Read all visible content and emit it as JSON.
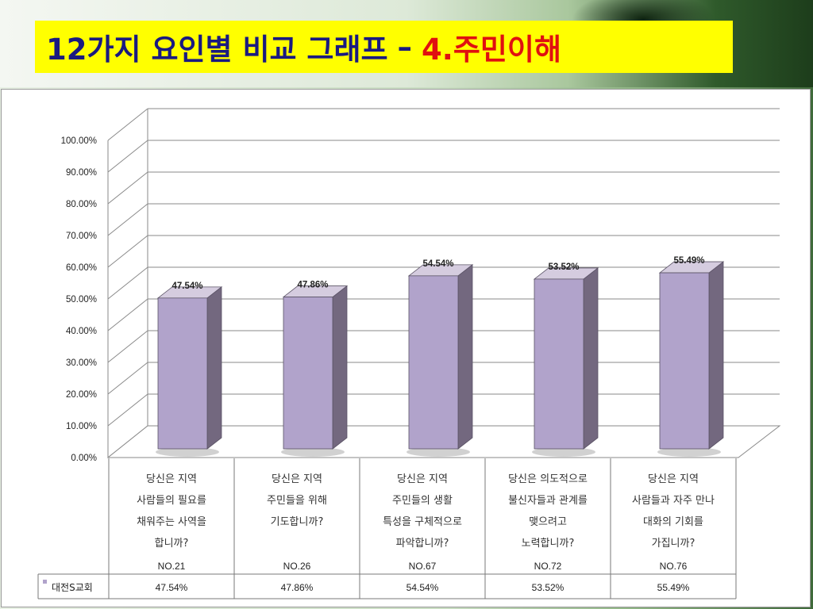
{
  "title": {
    "main": "12가지 요인별 비교 그래프",
    "separator": "–",
    "highlight": "4.주민이해"
  },
  "chart_data": {
    "type": "bar",
    "ylim": [
      0,
      100
    ],
    "yticks": [
      "0.00%",
      "10.00%",
      "20.00%",
      "30.00%",
      "40.00%",
      "50.00%",
      "60.00%",
      "70.00%",
      "80.00%",
      "90.00%",
      "100.00%"
    ],
    "grid": true,
    "categories": [
      {
        "lines": [
          "당신은 지역",
          "사람들의 필요를",
          "채워주는 사역을",
          "합니까?"
        ],
        "code": "NO.21"
      },
      {
        "lines": [
          "당신은 지역",
          "주민들을 위해",
          "기도합니까?"
        ],
        "code": "NO.26"
      },
      {
        "lines": [
          "당신은 지역",
          "주민들의 생활",
          "특성을 구체적으로",
          "파악합니까?"
        ],
        "code": "NO.67"
      },
      {
        "lines": [
          "당신은 의도적으로",
          "불신자들과 관계를",
          "맺으려고",
          "노력합니까?"
        ],
        "code": "NO.72"
      },
      {
        "lines": [
          "당신은 지역",
          "사람들과 자주 만나",
          "대화의 기회를",
          "가집니까?"
        ],
        "code": "NO.76"
      }
    ],
    "series": [
      {
        "name": "대전S교회",
        "values": [
          47.54,
          47.86,
          54.54,
          53.52,
          55.49
        ],
        "labels": [
          "47.54%",
          "47.86%",
          "54.54%",
          "53.52%",
          "55.49%"
        ],
        "color": "#b1a3cb",
        "side_color": "#73687f",
        "top_color": "#d5ccdf"
      }
    ],
    "legend_position": "bottom-left (data table)"
  }
}
